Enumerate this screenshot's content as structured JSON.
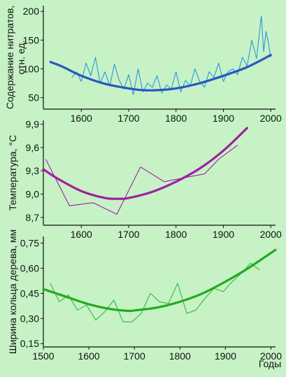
{
  "figure": {
    "background": "#c6f2c6",
    "xlabel": "Годы"
  },
  "chart_data": [
    {
      "type": "line",
      "ylabel_lines": [
        "Содержание нитратов,",
        "отн. ед."
      ],
      "xlim": [
        1520,
        2010
      ],
      "ylim": [
        30,
        210
      ],
      "yticks": [
        50,
        100,
        150,
        200
      ],
      "xticks": [
        1600,
        1700,
        1800,
        1900,
        2000
      ],
      "series": [
        {
          "role": "trend",
          "color": "#2a56c0",
          "x": [
            1535,
            1560,
            1600,
            1650,
            1700,
            1730,
            1760,
            1800,
            1850,
            1900,
            1950,
            2000
          ],
          "y": [
            112,
            104,
            88,
            74,
            66,
            63,
            63,
            66,
            75,
            88,
            103,
            124
          ]
        },
        {
          "role": "annual",
          "color": "#1e90e0",
          "x": [
            1580,
            1590,
            1600,
            1610,
            1620,
            1630,
            1640,
            1650,
            1660,
            1670,
            1680,
            1690,
            1700,
            1710,
            1720,
            1730,
            1740,
            1750,
            1760,
            1770,
            1780,
            1790,
            1800,
            1810,
            1820,
            1830,
            1840,
            1850,
            1860,
            1870,
            1880,
            1890,
            1900,
            1910,
            1920,
            1930,
            1940,
            1950,
            1960,
            1970,
            1980,
            1985,
            1990,
            1995,
            2000
          ],
          "y": [
            85,
            95,
            78,
            110,
            88,
            120,
            75,
            95,
            70,
            108,
            80,
            65,
            90,
            55,
            100,
            60,
            75,
            68,
            88,
            58,
            72,
            65,
            95,
            60,
            80,
            70,
            100,
            78,
            68,
            95,
            85,
            110,
            78,
            95,
            100,
            90,
            120,
            105,
            150,
            118,
            192,
            130,
            165,
            145,
            120
          ]
        }
      ]
    },
    {
      "type": "line",
      "ylabel": "Температура, °С",
      "xlim": [
        1520,
        2010
      ],
      "ylim": [
        8.6,
        9.95
      ],
      "yticks": [
        "8,7",
        "9,0",
        "9,3",
        "9,6",
        "9,9"
      ],
      "ytick_values": [
        8.7,
        9.0,
        9.3,
        9.6,
        9.9
      ],
      "xticks": [
        1600,
        1700,
        1800,
        1900,
        2000
      ],
      "series": [
        {
          "role": "trend",
          "color": "#a020a0",
          "x": [
            1520,
            1550,
            1600,
            1650,
            1680,
            1700,
            1750,
            1800,
            1850,
            1900,
            1950
          ],
          "y": [
            9.32,
            9.2,
            9.04,
            8.95,
            8.94,
            8.95,
            9.03,
            9.16,
            9.33,
            9.56,
            9.85
          ]
        },
        {
          "role": "observed",
          "color": "#a020a0",
          "x": [
            1525,
            1575,
            1625,
            1675,
            1725,
            1775,
            1825,
            1860,
            1890,
            1930
          ],
          "y": [
            9.45,
            8.85,
            8.89,
            8.74,
            9.35,
            9.16,
            9.22,
            9.26,
            9.45,
            9.63
          ]
        }
      ]
    },
    {
      "type": "line",
      "ylabel": "Ширина кольца дерева, мм",
      "xlim": [
        1500,
        2010
      ],
      "ylim": [
        0.13,
        0.79
      ],
      "yticks": [
        "0,15",
        "0,30",
        "0,45",
        "0,60",
        "0,75"
      ],
      "ytick_values": [
        0.15,
        0.3,
        0.45,
        0.6,
        0.75
      ],
      "xticks": [
        1500,
        1600,
        1700,
        1800,
        1900,
        2000
      ],
      "series": [
        {
          "role": "trend",
          "color": "#22aa22",
          "x": [
            1500,
            1550,
            1600,
            1650,
            1690,
            1700,
            1750,
            1800,
            1850,
            1900,
            1950,
            2010
          ],
          "y": [
            0.475,
            0.43,
            0.385,
            0.355,
            0.345,
            0.348,
            0.365,
            0.4,
            0.45,
            0.52,
            0.6,
            0.71
          ]
        },
        {
          "role": "observed",
          "color": "#33bb33",
          "x": [
            1515,
            1535,
            1555,
            1575,
            1595,
            1615,
            1635,
            1655,
            1675,
            1695,
            1715,
            1735,
            1755,
            1775,
            1795,
            1815,
            1835,
            1855,
            1875,
            1895,
            1915,
            1935,
            1955,
            1975
          ],
          "y": [
            0.51,
            0.4,
            0.44,
            0.35,
            0.38,
            0.29,
            0.34,
            0.41,
            0.28,
            0.28,
            0.33,
            0.45,
            0.4,
            0.39,
            0.51,
            0.33,
            0.35,
            0.42,
            0.48,
            0.46,
            0.52,
            0.57,
            0.63,
            0.59
          ]
        }
      ]
    }
  ]
}
